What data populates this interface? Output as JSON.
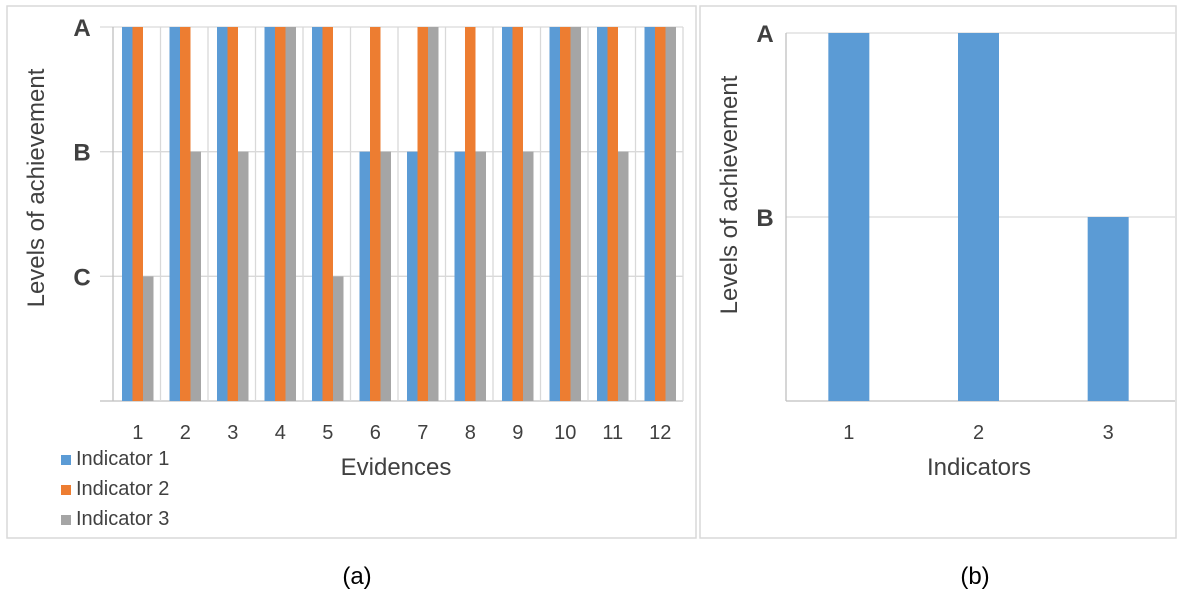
{
  "chart_data": [
    {
      "type": "bar",
      "panel_label": "(a)",
      "xlabel": "Evidences",
      "ylabel": "Levels of achievement",
      "categories": [
        "1",
        "2",
        "3",
        "4",
        "5",
        "6",
        "7",
        "8",
        "9",
        "10",
        "11",
        "12"
      ],
      "y_levels": [
        "A",
        "B",
        "C"
      ],
      "y_level_values": [
        3,
        2,
        1
      ],
      "ylim": [
        0,
        3
      ],
      "grid": true,
      "legend_position": "bottom-left",
      "series": [
        {
          "name": "Indicator 1",
          "color": "#5B9BD5",
          "values": [
            3,
            3,
            3,
            3,
            3,
            2,
            2,
            2,
            3,
            3,
            3,
            3
          ]
        },
        {
          "name": "Indicator 2",
          "color": "#ED7D31",
          "values": [
            3,
            3,
            3,
            3,
            3,
            3,
            3,
            3,
            3,
            3,
            3,
            3
          ]
        },
        {
          "name": "Indicator 3",
          "color": "#A5A5A5",
          "values": [
            1,
            2,
            2,
            3,
            1,
            2,
            3,
            2,
            2,
            3,
            2,
            3
          ]
        }
      ]
    },
    {
      "type": "bar",
      "panel_label": "(b)",
      "xlabel": "Indicators",
      "ylabel": "Levels of achievement",
      "categories": [
        "1",
        "2",
        "3"
      ],
      "y_levels": [
        "A",
        "B"
      ],
      "y_level_values": [
        2,
        1
      ],
      "ylim": [
        0,
        2
      ],
      "grid": true,
      "series": [
        {
          "color": "#5B9BD5",
          "values": [
            2,
            2,
            1
          ]
        }
      ]
    }
  ]
}
